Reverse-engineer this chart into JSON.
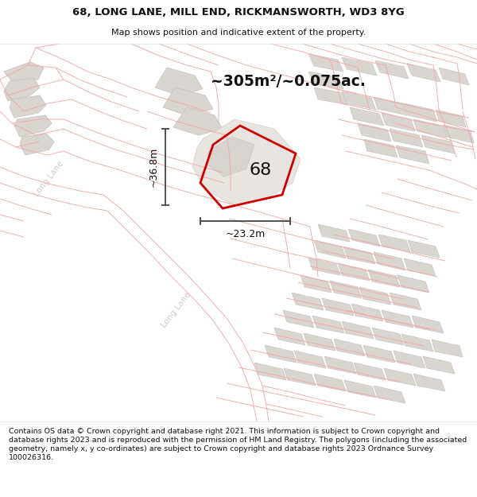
{
  "title_line1": "68, LONG LANE, MILL END, RICKMANSWORTH, WD3 8YG",
  "title_line2": "Map shows position and indicative extent of the property.",
  "footer_text": "Contains OS data © Crown copyright and database right 2021. This information is subject to Crown copyright and database rights 2023 and is reproduced with the permission of HM Land Registry. The polygons (including the associated geometry, namely x, y co-ordinates) are subject to Crown copyright and database rights 2023 Ordnance Survey 100026316.",
  "area_label": "~305m²/~0.075ac.",
  "width_label": "~23.2m",
  "height_label": "~36.8m",
  "number_label": "68",
  "map_bg": "#f7f5f3",
  "building_color": "#d9d6d1",
  "building_edge": "#c8c5c0",
  "road_line_color": "#f0a8a8",
  "highlight_color": "#cc0000",
  "dim_line_color": "#444444",
  "road_label_color": "#bbbbbb",
  "long_lane_label_color": "#cccccc",
  "title_fontsize": 9.5,
  "footer_fontsize": 7.2
}
